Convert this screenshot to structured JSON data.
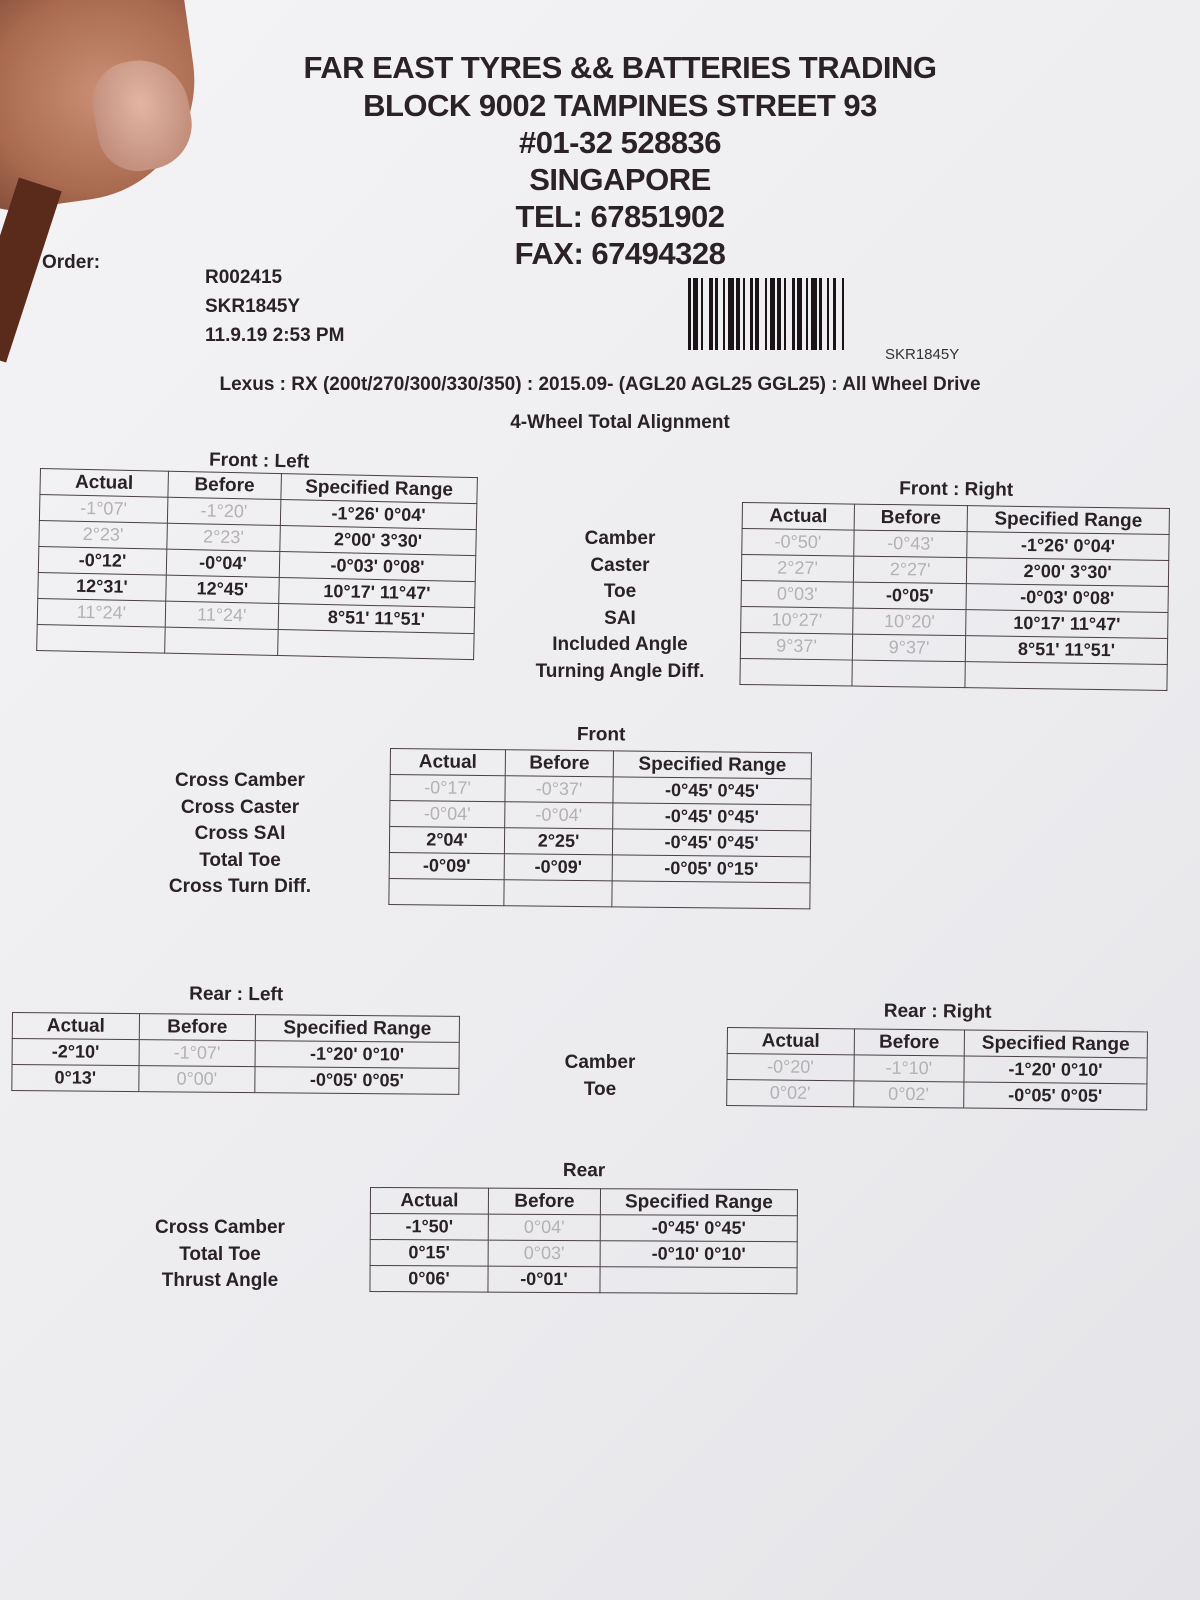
{
  "header": {
    "lines": [
      "FAR EAST TYRES && BATTERIES TRADING",
      "BLOCK 9002 TAMPINES STREET 93",
      "#01-32 528836",
      "SINGAPORE",
      "TEL: 67851902",
      "FAX: 67494328"
    ]
  },
  "order": {
    "label": "Order:",
    "number": "R002415",
    "plate": "SKR1845Y",
    "datetime": "11.9.19 2:53 PM"
  },
  "barcode": {
    "text": "SKR1845Y"
  },
  "vehicle": {
    "model": "Lexus : RX (200t/270/300/330/350) : 2015.09-   (AGL20 AGL25 GGL25) : All Wheel Drive",
    "service": "4-Wheel Total Alignment"
  },
  "columns": [
    "Actual",
    "Before",
    "Specified Range"
  ],
  "colors": {
    "in_range_text": "#b4b0b4",
    "out_of_range_text": "#2a2226"
  },
  "front_labels": [
    "Camber",
    "Caster",
    "Toe",
    "SAI",
    "Included Angle",
    "Turning Angle Diff."
  ],
  "front_cross_labels": [
    "Cross Camber",
    "Cross Caster",
    "Cross SAI",
    "Total Toe",
    "Cross Turn Diff."
  ],
  "rear_labels": [
    "Camber",
    "Toe"
  ],
  "rear_cross_labels": [
    "Cross Camber",
    "Total Toe",
    "Thrust Angle"
  ],
  "tables": {
    "front_left": {
      "title": "Front : Left",
      "rows": [
        [
          {
            "v": "-1°07'",
            "dim": true
          },
          {
            "v": "-1°20'",
            "dim": true
          },
          {
            "v": "-1°26' 0°04'"
          }
        ],
        [
          {
            "v": "2°23'",
            "dim": true
          },
          {
            "v": "2°23'",
            "dim": true
          },
          {
            "v": "2°00' 3°30'"
          }
        ],
        [
          {
            "v": "-0°12'"
          },
          {
            "v": "-0°04'"
          },
          {
            "v": "-0°03' 0°08'"
          }
        ],
        [
          {
            "v": "12°31'"
          },
          {
            "v": "12°45'"
          },
          {
            "v": "10°17' 11°47'"
          }
        ],
        [
          {
            "v": "11°24'",
            "dim": true
          },
          {
            "v": "11°24'",
            "dim": true
          },
          {
            "v": "8°51' 11°51'"
          }
        ],
        [
          {
            "v": ""
          },
          {
            "v": ""
          },
          {
            "v": ""
          }
        ]
      ]
    },
    "front_right": {
      "title": "Front : Right",
      "rows": [
        [
          {
            "v": "-0°50'",
            "dim": true
          },
          {
            "v": "-0°43'",
            "dim": true
          },
          {
            "v": "-1°26' 0°04'"
          }
        ],
        [
          {
            "v": "2°27'",
            "dim": true
          },
          {
            "v": "2°27'",
            "dim": true
          },
          {
            "v": "2°00' 3°30'"
          }
        ],
        [
          {
            "v": "0°03'",
            "dim": true
          },
          {
            "v": "-0°05'"
          },
          {
            "v": "-0°03' 0°08'"
          }
        ],
        [
          {
            "v": "10°27'",
            "dim": true
          },
          {
            "v": "10°20'",
            "dim": true
          },
          {
            "v": "10°17' 11°47'"
          }
        ],
        [
          {
            "v": "9°37'",
            "dim": true
          },
          {
            "v": "9°37'",
            "dim": true
          },
          {
            "v": "8°51' 11°51'"
          }
        ],
        [
          {
            "v": ""
          },
          {
            "v": ""
          },
          {
            "v": ""
          }
        ]
      ]
    },
    "front": {
      "title": "Front",
      "rows": [
        [
          {
            "v": "-0°17'",
            "dim": true
          },
          {
            "v": "-0°37'",
            "dim": true
          },
          {
            "v": "-0°45' 0°45'"
          }
        ],
        [
          {
            "v": "-0°04'",
            "dim": true
          },
          {
            "v": "-0°04'",
            "dim": true
          },
          {
            "v": "-0°45' 0°45'"
          }
        ],
        [
          {
            "v": "2°04'"
          },
          {
            "v": "2°25'"
          },
          {
            "v": "-0°45' 0°45'"
          }
        ],
        [
          {
            "v": "-0°09'"
          },
          {
            "v": "-0°09'"
          },
          {
            "v": "-0°05' 0°15'"
          }
        ],
        [
          {
            "v": ""
          },
          {
            "v": ""
          },
          {
            "v": ""
          }
        ]
      ]
    },
    "rear_left": {
      "title": "Rear : Left",
      "rows": [
        [
          {
            "v": "-2°10'"
          },
          {
            "v": "-1°07'",
            "dim": true
          },
          {
            "v": "-1°20' 0°10'"
          }
        ],
        [
          {
            "v": "0°13'"
          },
          {
            "v": "0°00'",
            "dim": true
          },
          {
            "v": "-0°05' 0°05'"
          }
        ]
      ]
    },
    "rear_right": {
      "title": "Rear : Right",
      "rows": [
        [
          {
            "v": "-0°20'",
            "dim": true
          },
          {
            "v": "-1°10'",
            "dim": true
          },
          {
            "v": "-1°20' 0°10'"
          }
        ],
        [
          {
            "v": "0°02'",
            "dim": true
          },
          {
            "v": "0°02'",
            "dim": true
          },
          {
            "v": "-0°05' 0°05'"
          }
        ]
      ]
    },
    "rear": {
      "title": "Rear",
      "rows": [
        [
          {
            "v": "-1°50'"
          },
          {
            "v": "0°04'",
            "dim": true
          },
          {
            "v": "-0°45' 0°45'"
          }
        ],
        [
          {
            "v": "0°15'"
          },
          {
            "v": "0°03'",
            "dim": true
          },
          {
            "v": "-0°10' 0°10'"
          }
        ],
        [
          {
            "v": "0°06'"
          },
          {
            "v": "-0°01'"
          },
          {
            "v": ""
          }
        ]
      ]
    }
  }
}
